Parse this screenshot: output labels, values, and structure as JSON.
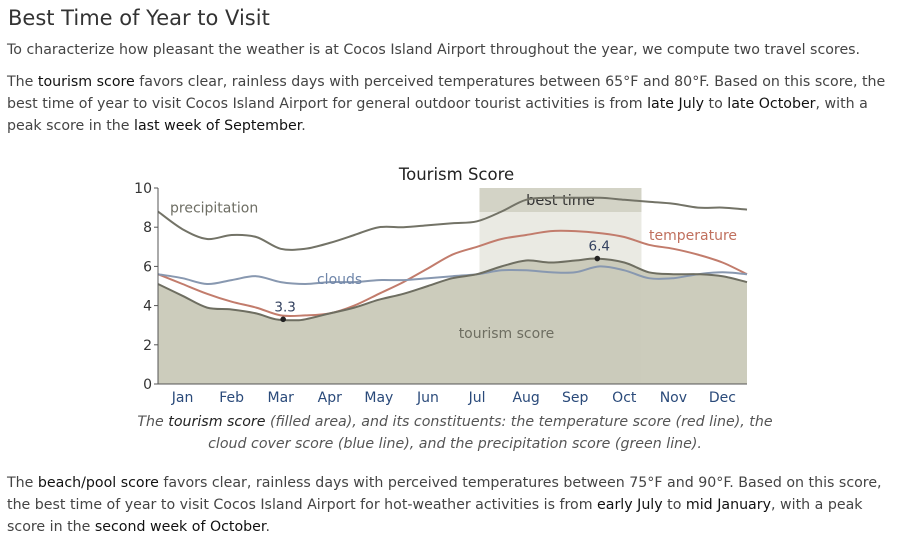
{
  "page": {
    "title": "Best Time of Year to Visit",
    "intro": "To characterize how pleasant the weather is at Cocos Island Airport throughout the year, we compute two travel scores.",
    "tourism_paragraph": {
      "t1": "The ",
      "b1": "tourism score",
      "t2": " favors clear, rainless days with perceived temperatures between 65°F and 80°F. Based on this score, the best time of year to visit Cocos Island Airport for general outdoor tourist activities is from ",
      "b2": "late July",
      "t3": " to ",
      "b3": "late October",
      "t4": ", with a peak score in the ",
      "b4": "last week of September",
      "t5": "."
    },
    "caption": {
      "t1": "The ",
      "b1": "tourism score",
      "t2": " (filled area), and its constituents: the temperature score (red line), the cloud cover score (blue line), and the precipitation score (green line)."
    },
    "beach_paragraph": {
      "t1": "The ",
      "b1": "beach/pool score",
      "t2": " favors clear, rainless days with perceived temperatures between 75°F and 90°F. Based on this score, the best time of year to visit Cocos Island Airport for hot-weather activities is from ",
      "b2": "early July",
      "t3": " to ",
      "b3": "mid January",
      "t4": ", with a peak score in the ",
      "b4": "second week of October",
      "t5": "."
    }
  },
  "chart_data": {
    "type": "area",
    "title": "Tourism Score",
    "xlabel": "",
    "ylabel": "",
    "x_domain": [
      0,
      12
    ],
    "ylim": [
      0,
      10
    ],
    "yticks": [
      "0",
      "2",
      "4",
      "6",
      "8",
      "10"
    ],
    "xticks": [
      "Jan",
      "Feb",
      "Mar",
      "Apr",
      "May",
      "Jun",
      "Jul",
      "Aug",
      "Sep",
      "Oct",
      "Nov",
      "Dec"
    ],
    "best_time": {
      "label": "best time",
      "start": 6.55,
      "end": 9.85
    },
    "series": [
      {
        "name": "tourism score",
        "kind": "area",
        "color": "#6e6e61",
        "fill": "#c9c9b8",
        "x": [
          0,
          0.5,
          1.0,
          1.5,
          2.0,
          2.4,
          2.8,
          3.0,
          3.5,
          4.0,
          4.5,
          5.0,
          5.5,
          6.0,
          6.5,
          7.0,
          7.5,
          8.0,
          8.5,
          8.95,
          9.5,
          10.0,
          10.5,
          11.0,
          11.5,
          12.0
        ],
        "values": [
          5.1,
          4.5,
          3.9,
          3.8,
          3.6,
          3.3,
          3.25,
          3.3,
          3.6,
          3.9,
          4.3,
          4.6,
          5.0,
          5.4,
          5.6,
          6.0,
          6.3,
          6.2,
          6.3,
          6.4,
          6.2,
          5.7,
          5.6,
          5.6,
          5.5,
          5.2
        ],
        "labels": [
          {
            "text": "3.3",
            "x": 2.55,
            "y": 3.3
          },
          {
            "text": "6.4",
            "x": 8.95,
            "y": 6.4
          }
        ]
      },
      {
        "name": "precipitation",
        "kind": "line",
        "color": "#737367",
        "x": [
          0,
          0.5,
          1.0,
          1.5,
          2.0,
          2.5,
          3.0,
          3.5,
          4.0,
          4.5,
          5.0,
          5.5,
          6.0,
          6.5,
          7.0,
          7.5,
          8.0,
          8.5,
          9.0,
          9.5,
          10.0,
          10.5,
          11.0,
          11.5,
          12.0
        ],
        "values": [
          8.8,
          7.9,
          7.4,
          7.6,
          7.5,
          6.9,
          6.9,
          7.2,
          7.6,
          8.0,
          8.0,
          8.1,
          8.2,
          8.3,
          8.8,
          9.4,
          9.5,
          9.5,
          9.5,
          9.4,
          9.3,
          9.2,
          9.0,
          9.0,
          8.9
        ],
        "label": {
          "text": "precipitation",
          "x": 0.0,
          "y": 9.0
        }
      },
      {
        "name": "temperature",
        "kind": "line",
        "color": "#c27c6c",
        "x": [
          0,
          0.5,
          1.0,
          1.5,
          2.0,
          2.5,
          3.0,
          3.5,
          4.0,
          4.5,
          5.0,
          5.5,
          6.0,
          6.5,
          7.0,
          7.5,
          8.0,
          8.5,
          9.0,
          9.5,
          10.0,
          10.5,
          11.0,
          11.5,
          12.0
        ],
        "values": [
          5.6,
          5.1,
          4.6,
          4.2,
          3.9,
          3.5,
          3.5,
          3.6,
          4.0,
          4.6,
          5.2,
          5.9,
          6.6,
          7.0,
          7.4,
          7.6,
          7.8,
          7.8,
          7.7,
          7.5,
          7.1,
          6.9,
          6.6,
          6.2,
          5.6
        ],
        "label": {
          "text": "temperature",
          "x": 10.9,
          "y": 7.6
        }
      },
      {
        "name": "clouds",
        "kind": "line",
        "color": "#8898b0",
        "x": [
          0,
          0.5,
          1.0,
          1.5,
          2.0,
          2.5,
          3.0,
          3.5,
          4.0,
          4.5,
          5.0,
          5.5,
          6.0,
          6.5,
          7.0,
          7.5,
          8.0,
          8.5,
          9.0,
          9.5,
          10.0,
          10.5,
          11.0,
          11.5,
          12.0
        ],
        "values": [
          5.6,
          5.4,
          5.1,
          5.3,
          5.5,
          5.2,
          5.1,
          5.2,
          5.2,
          5.3,
          5.3,
          5.4,
          5.5,
          5.6,
          5.8,
          5.8,
          5.7,
          5.7,
          6.0,
          5.8,
          5.4,
          5.4,
          5.6,
          5.7,
          5.6
        ],
        "label": {
          "text": "clouds",
          "x": 3.7,
          "y": 5.35
        }
      }
    ],
    "area_label": {
      "text": "tourism score",
      "x": 7.1,
      "y": 2.6
    }
  }
}
